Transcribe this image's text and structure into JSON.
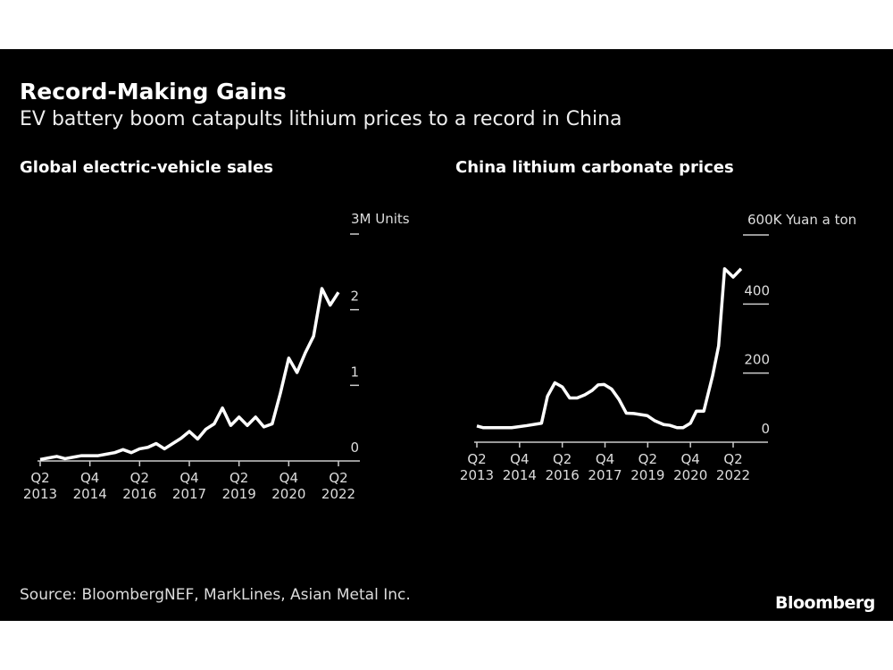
{
  "header": {
    "title": "Record-Making Gains",
    "subtitle": "EV battery boom catapults lithium prices to a record in China"
  },
  "footer": {
    "source": "Source: BloombergNEF, MarkLines, Asian Metal Inc.",
    "logo": "Bloomberg"
  },
  "colors": {
    "background": "#000000",
    "line": "#ffffff",
    "text": "#dddddd"
  },
  "chart_data": [
    {
      "type": "line",
      "title": "Global electric-vehicle sales",
      "unit_label": "3M Units",
      "ylim": [
        0,
        3
      ],
      "yticks": [
        {
          "v": 0,
          "label": "0"
        },
        {
          "v": 1,
          "label": "1"
        },
        {
          "v": 2,
          "label": "2"
        },
        {
          "v": 3,
          "label": "3M Units"
        }
      ],
      "xticks": [
        {
          "q": 0,
          "l1": "Q2",
          "l2": "2013"
        },
        {
          "q": 6,
          "l1": "Q4",
          "l2": "2014"
        },
        {
          "q": 12,
          "l1": "Q2",
          "l2": "2016"
        },
        {
          "q": 18,
          "l1": "Q4",
          "l2": "2017"
        },
        {
          "q": 24,
          "l1": "Q2",
          "l2": "2019"
        },
        {
          "q": 30,
          "l1": "Q4",
          "l2": "2020"
        },
        {
          "q": 36,
          "l1": "Q2",
          "l2": "2022"
        }
      ],
      "x_start": "Q2 2013",
      "x_end": "Q2 2022",
      "x_frequency": "quarterly",
      "values": [
        0.02,
        0.04,
        0.06,
        0.03,
        0.05,
        0.07,
        0.07,
        0.07,
        0.09,
        0.11,
        0.15,
        0.11,
        0.16,
        0.18,
        0.23,
        0.16,
        0.23,
        0.3,
        0.39,
        0.29,
        0.42,
        0.49,
        0.7,
        0.47,
        0.58,
        0.47,
        0.58,
        0.45,
        0.49,
        0.9,
        1.36,
        1.17,
        1.43,
        1.65,
        2.28,
        2.06,
        2.23
      ]
    },
    {
      "type": "line",
      "title": "China lithium carbonate prices",
      "unit_label": "600K Yuan a ton",
      "ylim": [
        0,
        600
      ],
      "yticks": [
        {
          "v": 0,
          "label": "0"
        },
        {
          "v": 200,
          "label": "200"
        },
        {
          "v": 400,
          "label": "400"
        },
        {
          "v": 600,
          "label": "600K Yuan a ton"
        }
      ],
      "xticks": [
        {
          "q": 0,
          "l1": "Q2",
          "l2": "2013"
        },
        {
          "q": 6,
          "l1": "Q4",
          "l2": "2014"
        },
        {
          "q": 12,
          "l1": "Q2",
          "l2": "2016"
        },
        {
          "q": 18,
          "l1": "Q4",
          "l2": "2017"
        },
        {
          "q": 24,
          "l1": "Q2",
          "l2": "2019"
        },
        {
          "q": 30,
          "l1": "Q4",
          "l2": "2020"
        },
        {
          "q": 36,
          "l1": "Q2",
          "l2": "2022"
        }
      ],
      "points": [
        [
          2013.25,
          47
        ],
        [
          2013.48,
          42
        ],
        [
          2014.47,
          42
        ],
        [
          2015.0,
          48
        ],
        [
          2015.52,
          55
        ],
        [
          2015.73,
          133
        ],
        [
          2015.99,
          172
        ],
        [
          2016.25,
          160
        ],
        [
          2016.51,
          128
        ],
        [
          2016.77,
          128
        ],
        [
          2017.04,
          137
        ],
        [
          2017.3,
          150
        ],
        [
          2017.51,
          166
        ],
        [
          2017.72,
          167
        ],
        [
          2017.98,
          154
        ],
        [
          2018.24,
          124
        ],
        [
          2018.5,
          84
        ],
        [
          2018.76,
          83
        ],
        [
          2019.23,
          77
        ],
        [
          2019.5,
          62
        ],
        [
          2019.81,
          51
        ],
        [
          2020.02,
          49
        ],
        [
          2020.28,
          42
        ],
        [
          2020.49,
          42
        ],
        [
          2020.75,
          55
        ],
        [
          2020.96,
          90
        ],
        [
          2021.22,
          90
        ],
        [
          2021.53,
          193
        ],
        [
          2021.74,
          279
        ],
        [
          2021.95,
          502
        ],
        [
          2022.25,
          478
        ],
        [
          2022.53,
          502
        ]
      ]
    }
  ]
}
